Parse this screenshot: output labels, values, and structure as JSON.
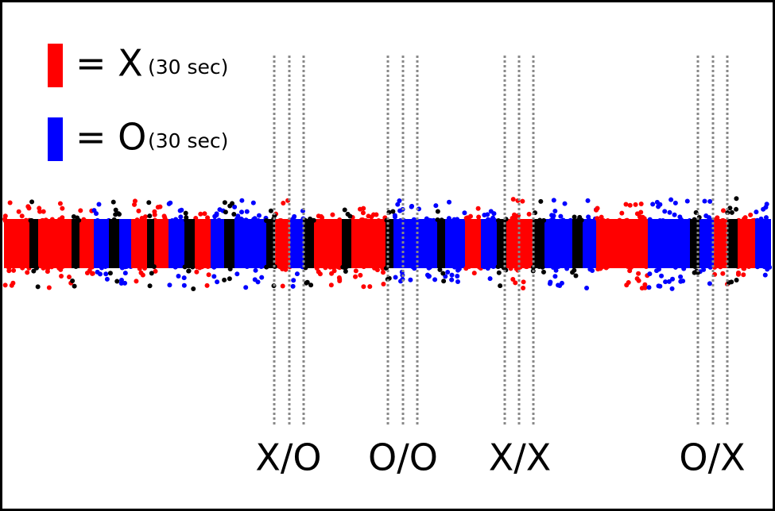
{
  "legend": [
    {
      "symbol": "= X",
      "duration": "(30 sec)"
    },
    {
      "symbol": "= O",
      "duration": "(30 sec)"
    }
  ],
  "labels": [
    "X/O",
    "O/O",
    "X/X",
    "O/X"
  ]
}
